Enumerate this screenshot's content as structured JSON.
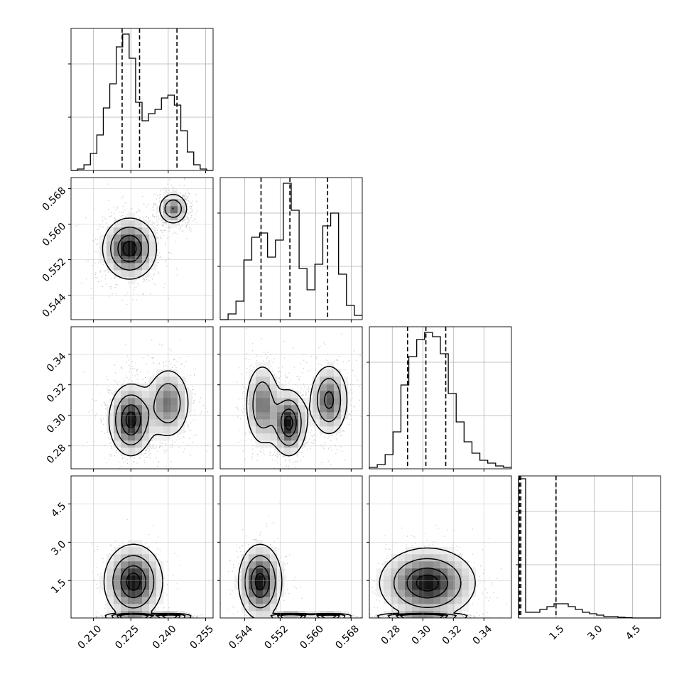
{
  "chart_data": {
    "type": "corner",
    "title": "",
    "grid": true,
    "parameters": [
      {
        "index": 0,
        "range": [
          0.201,
          0.258
        ],
        "ticks": [
          0.21,
          0.225,
          0.24,
          0.255
        ],
        "tick_labels": [
          "0.210",
          "0.225",
          "0.240",
          "0.255"
        ],
        "quantiles": [
          0.2215,
          0.2285,
          0.2435
        ]
      },
      {
        "index": 1,
        "range": [
          0.5385,
          0.5705
        ],
        "ticks": [
          0.544,
          0.552,
          0.56,
          0.568
        ],
        "tick_labels": [
          "0.544",
          "0.552",
          "0.560",
          "0.568"
        ],
        "quantiles": [
          0.5477,
          0.5542,
          0.5627
        ]
      },
      {
        "index": 2,
        "range": [
          0.265,
          0.358
        ],
        "ticks": [
          0.28,
          0.3,
          0.32,
          0.34
        ],
        "tick_labels": [
          "0.28",
          "0.30",
          "0.32",
          "0.34"
        ],
        "quantiles": [
          0.29,
          0.302,
          0.315
        ]
      },
      {
        "index": 3,
        "range": [
          0.03,
          5.6
        ],
        "ticks": [
          1.5,
          3.0,
          4.5
        ],
        "tick_labels": [
          "1.5",
          "3.0",
          "4.5"
        ],
        "y_tick_labels": [
          "1.5",
          "3.0",
          "4.5"
        ],
        "quantiles": [
          0.07,
          0.12,
          1.5
        ]
      }
    ],
    "histograms": [
      {
        "param": 0,
        "bins_lo": 0.201,
        "bins_hi": 0.258,
        "counts": [
          0,
          0.01,
          0.04,
          0.12,
          0.25,
          0.44,
          0.61,
          0.87,
          0.96,
          0.79,
          0.48,
          0.35,
          0.4,
          0.43,
          0.51,
          0.53,
          0.46,
          0.28,
          0.13,
          0.04,
          0.01,
          0
        ]
      },
      {
        "param": 1,
        "bins_lo": 0.5385,
        "bins_hi": 0.5705,
        "counts": [
          0,
          0.04,
          0.13,
          0.42,
          0.58,
          0.61,
          0.44,
          0.56,
          0.96,
          0.77,
          0.36,
          0.21,
          0.39,
          0.66,
          0.75,
          0.32,
          0.1,
          0.03
        ]
      },
      {
        "param": 2,
        "bins_lo": 0.265,
        "bins_hi": 0.358,
        "counts": [
          0.01,
          0.03,
          0.1,
          0.26,
          0.59,
          0.79,
          0.91,
          0.96,
          0.93,
          0.81,
          0.53,
          0.33,
          0.19,
          0.11,
          0.06,
          0.04,
          0.02,
          0.01
        ]
      },
      {
        "param": 3,
        "bins_lo": 0.03,
        "bins_hi": 5.6,
        "counts": [
          0.98,
          0.04,
          0.04,
          0.06,
          0.08,
          0.1,
          0.1,
          0.08,
          0.06,
          0.04,
          0.03,
          0.02,
          0.01,
          0.01,
          0.005,
          0.002,
          0,
          0,
          0,
          0
        ]
      }
    ],
    "pairs": [
      {
        "x": 0,
        "y": 1,
        "modes": [
          {
            "cx": 0.2245,
            "cy": 0.5545,
            "sx": 0.0055,
            "sy": 0.0035,
            "w": 1.0
          },
          {
            "cx": 0.242,
            "cy": 0.5635,
            "sx": 0.003,
            "sy": 0.0018,
            "w": 0.7
          }
        ]
      },
      {
        "x": 0,
        "y": 2,
        "modes": [
          {
            "cx": 0.225,
            "cy": 0.297,
            "sx": 0.0045,
            "sy": 0.012,
            "w": 1.0
          },
          {
            "cx": 0.24,
            "cy": 0.308,
            "sx": 0.0045,
            "sy": 0.012,
            "w": 0.7
          }
        ]
      },
      {
        "x": 1,
        "y": 2,
        "modes": [
          {
            "cx": 0.548,
            "cy": 0.307,
            "sx": 0.002,
            "sy": 0.014,
            "w": 0.7
          },
          {
            "cx": 0.554,
            "cy": 0.295,
            "sx": 0.002,
            "sy": 0.011,
            "w": 1.0
          },
          {
            "cx": 0.563,
            "cy": 0.31,
            "sx": 0.0022,
            "sy": 0.012,
            "w": 0.8
          }
        ]
      },
      {
        "x": 0,
        "y": 3,
        "modes": [
          {
            "cx": 0.226,
            "cy": 1.45,
            "sx": 0.006,
            "sy": 0.75,
            "w": 0.5
          },
          {
            "cx": 0.226,
            "cy": 0.08,
            "sx": 0.005,
            "sy": 0.05,
            "w": 1.0
          },
          {
            "cx": 0.241,
            "cy": 0.08,
            "sx": 0.004,
            "sy": 0.05,
            "w": 0.8
          }
        ]
      },
      {
        "x": 1,
        "y": 3,
        "modes": [
          {
            "cx": 0.5475,
            "cy": 1.45,
            "sx": 0.0025,
            "sy": 0.75,
            "w": 0.5
          },
          {
            "cx": 0.5545,
            "cy": 0.08,
            "sx": 0.0025,
            "sy": 0.05,
            "w": 1.0
          },
          {
            "cx": 0.563,
            "cy": 0.08,
            "sx": 0.0025,
            "sy": 0.05,
            "w": 0.8
          }
        ]
      },
      {
        "x": 2,
        "y": 3,
        "modes": [
          {
            "cx": 0.303,
            "cy": 1.4,
            "sx": 0.016,
            "sy": 0.7,
            "w": 0.5
          },
          {
            "cx": 0.299,
            "cy": 0.08,
            "sx": 0.013,
            "sy": 0.05,
            "w": 1.0
          }
        ]
      }
    ]
  }
}
